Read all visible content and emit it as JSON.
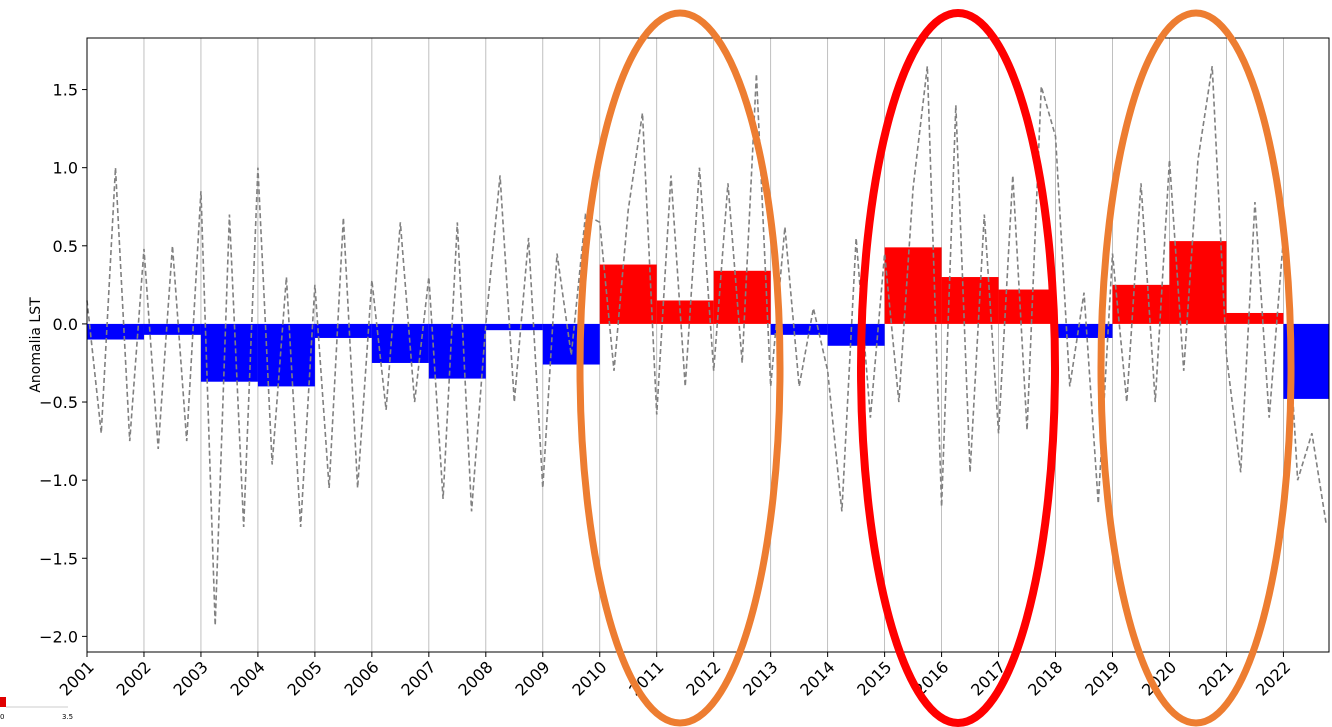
{
  "chart_data": {
    "type": "bar",
    "ylabel": "Anomalia LST",
    "x": [
      2001,
      2002,
      2003,
      2004,
      2005,
      2006,
      2007,
      2008,
      2009,
      2010,
      2011,
      2012,
      2013,
      2014,
      2015,
      2016,
      2017,
      2018,
      2019,
      2020,
      2021,
      2022
    ],
    "values": [
      -0.1,
      -0.07,
      -0.37,
      -0.4,
      -0.09,
      -0.25,
      -0.35,
      -0.04,
      -0.26,
      0.38,
      0.15,
      0.34,
      -0.07,
      -0.14,
      0.49,
      0.3,
      0.22,
      -0.09,
      0.25,
      0.53,
      0.07,
      -0.48
    ],
    "positive_color": "#ff0000",
    "negative_color": "#0000ff",
    "overlay": {
      "type": "line",
      "color": "#808080",
      "dashed": true,
      "x": [
        2001,
        2001.25,
        2001.5,
        2001.75,
        2002,
        2002.25,
        2002.5,
        2002.75,
        2003,
        2003.25,
        2003.5,
        2003.75,
        2004,
        2004.25,
        2004.5,
        2004.75,
        2005,
        2005.25,
        2005.5,
        2005.75,
        2006,
        2006.25,
        2006.5,
        2006.75,
        2007,
        2007.25,
        2007.5,
        2007.75,
        2008,
        2008.25,
        2008.5,
        2008.75,
        2009,
        2009.25,
        2009.5,
        2009.75,
        2010,
        2010.25,
        2010.5,
        2010.75,
        2011,
        2011.25,
        2011.5,
        2011.75,
        2012,
        2012.25,
        2012.5,
        2012.75,
        2013,
        2013.25,
        2013.5,
        2013.75,
        2014,
        2014.25,
        2014.5,
        2014.75,
        2015,
        2015.25,
        2015.5,
        2015.75,
        2016,
        2016.25,
        2016.5,
        2016.75,
        2017,
        2017.25,
        2017.5,
        2017.75,
        2018,
        2018.25,
        2018.5,
        2018.75,
        2019,
        2019.25,
        2019.5,
        2019.75,
        2020,
        2020.25,
        2020.5,
        2020.75,
        2021,
        2021.25,
        2021.5,
        2021.75,
        2022,
        2022.25,
        2022.5,
        2022.75
      ],
      "values": [
        0.15,
        -0.7,
        1.0,
        -0.75,
        0.48,
        -0.8,
        0.5,
        -0.75,
        0.85,
        -1.93,
        0.7,
        -1.3,
        1.0,
        -0.9,
        0.3,
        -1.3,
        0.25,
        -1.05,
        0.68,
        -1.05,
        0.28,
        -0.55,
        0.65,
        -0.5,
        0.3,
        -1.12,
        0.65,
        -1.2,
        0.0,
        0.95,
        -0.5,
        0.55,
        -1.05,
        0.45,
        -0.2,
        0.7,
        0.65,
        -0.3,
        0.73,
        1.35,
        -0.58,
        0.95,
        -0.4,
        1.0,
        -0.3,
        0.9,
        -0.25,
        1.6,
        -0.4,
        0.62,
        -0.4,
        0.1,
        -0.3,
        -1.2,
        0.55,
        -0.6,
        0.45,
        -0.5,
        0.87,
        1.65,
        -1.17,
        1.4,
        -0.95,
        0.7,
        -0.7,
        0.95,
        -0.68,
        1.52,
        1.2,
        -0.4,
        0.2,
        -1.15,
        0.45,
        -0.5,
        0.9,
        -0.5,
        1.05,
        -0.3,
        1.05,
        1.65,
        -0.2,
        -0.95,
        0.78,
        -0.6,
        0.55,
        -1.0,
        -0.7,
        -1.28
      ]
    },
    "xlim": [
      2001,
      2022.8
    ],
    "xticks": [
      2001,
      2002,
      2003,
      2004,
      2005,
      2006,
      2007,
      2008,
      2009,
      2010,
      2011,
      2012,
      2013,
      2014,
      2015,
      2016,
      2017,
      2018,
      2019,
      2020,
      2021,
      2022
    ],
    "ylim": [
      -2.1,
      1.83
    ],
    "yticks": [
      {
        "value": 1.5,
        "label": "1.5"
      },
      {
        "value": 1.0,
        "label": "1.0"
      },
      {
        "value": 0.5,
        "label": "0.5"
      },
      {
        "value": 0.0,
        "label": "0.0"
      },
      {
        "value": -0.5,
        "label": "−0.5"
      },
      {
        "value": -1.0,
        "label": "−1.0"
      },
      {
        "value": -1.5,
        "label": "−1.5"
      },
      {
        "value": -2.0,
        "label": "−2.0"
      }
    ],
    "grid": "x"
  },
  "colorbar_fragment": {
    "labels": [
      "0",
      "3.5"
    ]
  }
}
